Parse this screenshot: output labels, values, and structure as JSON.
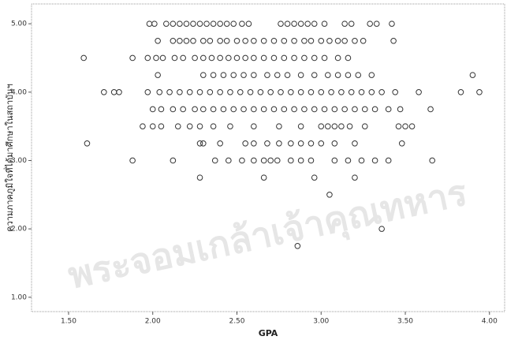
{
  "chart_data": {
    "type": "scatter",
    "x_label": "GPA",
    "y_label": "ความภาคภูมิใจที่ได้มาศึกษาในสถาบันฯ",
    "watermark": "พระจอมเกล้าเจ้าคุณทหาร",
    "marker": "circle",
    "color": "#333333",
    "xlim": [
      1.28,
      4.09
    ],
    "ylim": [
      0.79,
      5.29
    ],
    "xticks": [
      {
        "value": 1.5,
        "label": "1.50"
      },
      {
        "value": 2,
        "label": "2.00"
      },
      {
        "value": 2.5,
        "label": "2.50"
      },
      {
        "value": 3,
        "label": "3.00"
      },
      {
        "value": 3.5,
        "label": "3.50"
      },
      {
        "value": 4,
        "label": "4.00"
      }
    ],
    "yticks": [
      {
        "value": 1,
        "label": "1.00"
      },
      {
        "value": 2,
        "label": "2.00"
      },
      {
        "value": 3,
        "label": "3.00"
      },
      {
        "value": 4,
        "label": "4.00"
      },
      {
        "value": 5,
        "label": "5.00"
      }
    ],
    "series": [
      {
        "x": [
          1.98,
          2.01,
          2.08,
          2.12,
          2.16,
          2.2,
          2.24,
          2.28,
          2.32,
          2.36,
          2.4,
          2.44,
          2.48,
          2.53,
          2.57,
          2.76,
          2.8,
          2.84,
          2.88,
          2.92,
          2.96,
          3.02,
          3.14,
          3.18,
          3.29,
          3.33,
          3.42
        ],
        "values": [
          5,
          5,
          5,
          5,
          5,
          5,
          5,
          5,
          5,
          5,
          5,
          5,
          5,
          5,
          5,
          5,
          5,
          5,
          5,
          5,
          5,
          5,
          5,
          5,
          5,
          5,
          5
        ]
      },
      {
        "x": [
          2.03,
          2.12,
          2.16,
          2.2,
          2.24,
          2.3,
          2.34,
          2.4,
          2.44,
          2.5,
          2.55,
          2.6,
          2.66,
          2.72,
          2.78,
          2.84,
          2.9,
          2.94,
          3.0,
          3.05,
          3.1,
          3.14,
          3.2,
          3.25,
          3.43
        ],
        "values": [
          4.75,
          4.75,
          4.75,
          4.75,
          4.75,
          4.75,
          4.75,
          4.75,
          4.75,
          4.75,
          4.75,
          4.75,
          4.75,
          4.75,
          4.75,
          4.75,
          4.75,
          4.75,
          4.75,
          4.75,
          4.75,
          4.75,
          4.75,
          4.75,
          4.75
        ]
      },
      {
        "x": [
          1.59,
          1.88,
          1.97,
          2.02,
          2.06,
          2.13,
          2.18,
          2.25,
          2.3,
          2.35,
          2.4,
          2.45,
          2.5,
          2.55,
          2.6,
          2.66,
          2.72,
          2.78,
          2.84,
          2.9,
          2.96,
          3.02,
          3.1,
          3.16
        ],
        "values": [
          4.5,
          4.5,
          4.5,
          4.5,
          4.5,
          4.5,
          4.5,
          4.5,
          4.5,
          4.5,
          4.5,
          4.5,
          4.5,
          4.5,
          4.5,
          4.5,
          4.5,
          4.5,
          4.5,
          4.5,
          4.5,
          4.5,
          4.5,
          4.5
        ]
      },
      {
        "x": [
          2.03,
          2.3,
          2.36,
          2.42,
          2.48,
          2.54,
          2.6,
          2.68,
          2.74,
          2.8,
          2.88,
          2.96,
          3.04,
          3.1,
          3.16,
          3.22,
          3.3,
          3.9
        ],
        "values": [
          4.25,
          4.25,
          4.25,
          4.25,
          4.25,
          4.25,
          4.25,
          4.25,
          4.25,
          4.25,
          4.25,
          4.25,
          4.25,
          4.25,
          4.25,
          4.25,
          4.25,
          4.25
        ]
      },
      {
        "x": [
          1.71,
          1.77,
          1.8,
          1.97,
          2.04,
          2.1,
          2.16,
          2.22,
          2.28,
          2.34,
          2.4,
          2.46,
          2.52,
          2.58,
          2.64,
          2.7,
          2.76,
          2.82,
          2.88,
          2.94,
          3.0,
          3.06,
          3.12,
          3.18,
          3.24,
          3.3,
          3.36,
          3.44,
          3.58,
          3.83,
          3.94
        ],
        "values": [
          4,
          4,
          4,
          4,
          4,
          4,
          4,
          4,
          4,
          4,
          4,
          4,
          4,
          4,
          4,
          4,
          4,
          4,
          4,
          4,
          4,
          4,
          4,
          4,
          4,
          4,
          4,
          4,
          4,
          4,
          4
        ]
      },
      {
        "x": [
          2.0,
          2.05,
          2.12,
          2.18,
          2.25,
          2.3,
          2.36,
          2.42,
          2.48,
          2.54,
          2.6,
          2.66,
          2.72,
          2.78,
          2.84,
          2.9,
          2.96,
          3.02,
          3.08,
          3.14,
          3.2,
          3.26,
          3.32,
          3.4,
          3.47,
          3.65
        ],
        "values": [
          3.75,
          3.75,
          3.75,
          3.75,
          3.75,
          3.75,
          3.75,
          3.75,
          3.75,
          3.75,
          3.75,
          3.75,
          3.75,
          3.75,
          3.75,
          3.75,
          3.75,
          3.75,
          3.75,
          3.75,
          3.75,
          3.75,
          3.75,
          3.75,
          3.75,
          3.75
        ]
      },
      {
        "x": [
          1.94,
          2.0,
          2.05,
          2.15,
          2.22,
          2.28,
          2.36,
          2.46,
          2.6,
          2.75,
          2.88,
          3.0,
          3.04,
          3.08,
          3.12,
          3.17,
          3.26,
          3.46,
          3.5,
          3.54
        ],
        "values": [
          3.5,
          3.5,
          3.5,
          3.5,
          3.5,
          3.5,
          3.5,
          3.5,
          3.5,
          3.5,
          3.5,
          3.5,
          3.5,
          3.5,
          3.5,
          3.5,
          3.5,
          3.5,
          3.5,
          3.5
        ]
      },
      {
        "x": [
          1.61,
          2.28,
          2.3,
          2.4,
          2.55,
          2.6,
          2.68,
          2.75,
          2.82,
          2.88,
          2.94,
          3.0,
          3.08,
          3.2,
          3.48
        ],
        "values": [
          3.25,
          3.25,
          3.25,
          3.25,
          3.25,
          3.25,
          3.25,
          3.25,
          3.25,
          3.25,
          3.25,
          3.25,
          3.25,
          3.25,
          3.25
        ]
      },
      {
        "x": [
          1.88,
          2.12,
          2.37,
          2.45,
          2.53,
          2.6,
          2.66,
          2.7,
          2.74,
          2.82,
          2.88,
          2.94,
          3.08,
          3.16,
          3.24,
          3.32,
          3.4,
          3.66
        ],
        "values": [
          3,
          3,
          3,
          3,
          3,
          3,
          3,
          3,
          3,
          3,
          3,
          3,
          3,
          3,
          3,
          3,
          3,
          3
        ]
      },
      {
        "x": [
          2.28,
          2.66,
          2.96,
          3.2
        ],
        "values": [
          2.75,
          2.75,
          2.75,
          2.75
        ]
      },
      {
        "x": [
          3.05
        ],
        "values": [
          2.5
        ]
      },
      {
        "x": [
          3.36
        ],
        "values": [
          2
        ]
      },
      {
        "x": [
          2.86
        ],
        "values": [
          1.75
        ]
      }
    ]
  }
}
